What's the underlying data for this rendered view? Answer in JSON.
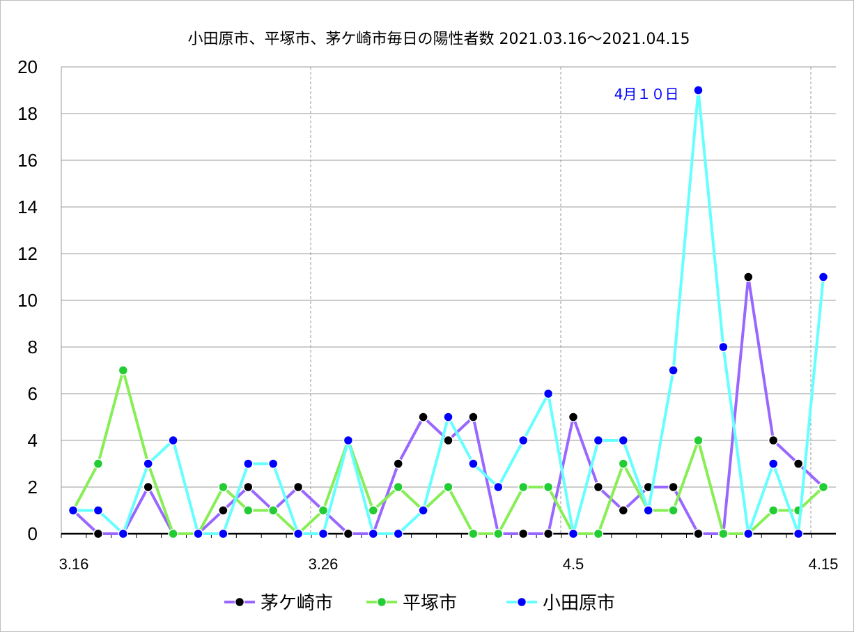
{
  "chart_data": {
    "type": "line",
    "title": "小田原市、平塚市、茅ケ崎市毎日の陽性者数 2021.03.16〜2021.04.15",
    "xlabel": "",
    "ylabel": "",
    "ylim": [
      0,
      20
    ],
    "yticks": [
      0,
      2,
      4,
      6,
      8,
      10,
      12,
      14,
      16,
      18,
      20
    ],
    "x": [
      "3.16",
      "3.17",
      "3.18",
      "3.19",
      "3.20",
      "3.21",
      "3.22",
      "3.23",
      "3.24",
      "3.25",
      "3.26",
      "3.27",
      "3.28",
      "3.29",
      "3.30",
      "3.31",
      "4.1",
      "4.2",
      "4.3",
      "4.4",
      "4.5",
      "4.6",
      "4.7",
      "4.8",
      "4.9",
      "4.10",
      "4.11",
      "4.12",
      "4.13",
      "4.14",
      "4.15"
    ],
    "xtick_labels": [
      "3.16",
      "3.26",
      "4.5",
      "4.15"
    ],
    "xtick_indices": [
      0,
      10,
      20,
      30
    ],
    "grid": true,
    "legend_position": "bottom",
    "annotation": {
      "text": "4月１０日",
      "index": 25
    },
    "series": [
      {
        "name": "茅ケ崎市",
        "line_color": "#9966ff",
        "marker_color": "#000000",
        "values": [
          1,
          0,
          0,
          2,
          0,
          0,
          1,
          2,
          1,
          2,
          1,
          0,
          0,
          3,
          5,
          4,
          5,
          0,
          0,
          0,
          5,
          2,
          1,
          2,
          2,
          0,
          0,
          11,
          4,
          3,
          2
        ]
      },
      {
        "name": "平塚市",
        "line_color": "#88ee55",
        "marker_color": "#22cc33",
        "values": [
          1,
          3,
          7,
          3,
          0,
          0,
          2,
          1,
          1,
          0,
          1,
          4,
          1,
          2,
          1,
          2,
          0,
          0,
          2,
          2,
          0,
          0,
          3,
          1,
          1,
          4,
          0,
          0,
          1,
          1,
          2
        ]
      },
      {
        "name": "小田原市",
        "line_color": "#66ffff",
        "marker_color": "#0000ff",
        "values": [
          1,
          1,
          0,
          3,
          4,
          0,
          0,
          3,
          3,
          0,
          0,
          4,
          0,
          0,
          1,
          5,
          3,
          2,
          4,
          6,
          0,
          4,
          4,
          1,
          7,
          19,
          8,
          0,
          3,
          0,
          11
        ]
      }
    ]
  }
}
